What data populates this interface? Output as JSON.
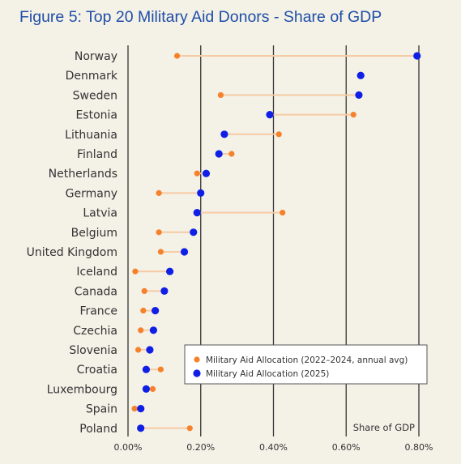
{
  "chart_data": {
    "type": "scatter",
    "title": "Figure 5: Top 20 Military Aid Donors - Share of GDP",
    "xlabel": "Share of GDP",
    "ylabel": "",
    "xlim": [
      0,
      0.8
    ],
    "xticks": [
      0,
      0.2,
      0.4,
      0.6,
      0.8
    ],
    "xtick_labels": [
      "0.00%",
      "0.20%",
      "0.40%",
      "0.60%",
      "0.80%"
    ],
    "grid": "vertical",
    "legend_position": "lower-right",
    "categories": [
      "Norway",
      "Denmark",
      "Sweden",
      "Estonia",
      "Lithuania",
      "Finland",
      "Netherlands",
      "Germany",
      "Latvia",
      "Belgium",
      "United Kingdom",
      "Iceland",
      "Canada",
      "France",
      "Czechia",
      "Slovenia",
      "Croatia",
      "Luxembourg",
      "Spain",
      "Poland"
    ],
    "series": [
      {
        "name": "Military Aid Allocation (2022–2024, annual avg)",
        "color": "#f5822a",
        "values": [
          0.135,
          null,
          0.255,
          0.62,
          0.415,
          0.285,
          0.19,
          0.085,
          0.425,
          0.085,
          0.09,
          0.02,
          0.045,
          0.042,
          0.035,
          0.028,
          0.09,
          0.068,
          0.018,
          0.17
        ]
      },
      {
        "name": "Military Aid Allocation (2025)",
        "color": "#0f1fe6",
        "values": [
          0.795,
          0.64,
          0.635,
          0.39,
          0.265,
          0.25,
          0.215,
          0.2,
          0.19,
          0.18,
          0.155,
          0.115,
          0.1,
          0.075,
          0.07,
          0.06,
          0.05,
          0.05,
          0.035,
          0.035
        ]
      }
    ],
    "connector_color": "#f7cba3"
  }
}
